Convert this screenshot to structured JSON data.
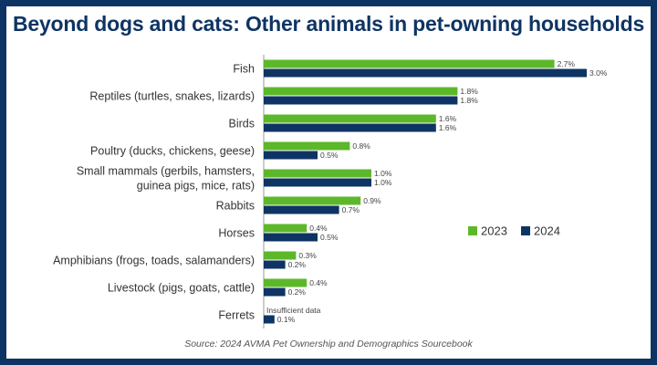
{
  "colors": {
    "frame": "#0e3463",
    "series_2023": "#5cb82a",
    "series_2024": "#0e3463"
  },
  "chart_data": {
    "type": "bar",
    "orientation": "horizontal",
    "title": "Beyond dogs and cats: Other animals in pet-owning households",
    "source": "Source: 2024 AVMA Pet Ownership and Demographics Sourcebook",
    "categories": [
      [
        "Fish"
      ],
      [
        "Reptiles (turtles, snakes, lizards)"
      ],
      [
        "Birds"
      ],
      [
        "Poultry (ducks, chickens, geese)"
      ],
      [
        "Small mammals (gerbils, hamsters,",
        "guinea pigs, mice, rats)"
      ],
      [
        "Rabbits"
      ],
      [
        "Horses"
      ],
      [
        "Amphibians (frogs, toads, salamanders)"
      ],
      [
        "Livestock (pigs, goats, cattle)"
      ],
      [
        "Ferrets"
      ]
    ],
    "series": [
      {
        "name": "2023",
        "color": "#5cb82a",
        "values": [
          2.7,
          1.8,
          1.6,
          0.8,
          1.0,
          0.9,
          0.4,
          0.3,
          0.4,
          null
        ],
        "labels": [
          "2.7%",
          "1.8%",
          "1.6%",
          "0.8%",
          "1.0%",
          "0.9%",
          "0.4%",
          "0.3%",
          "0.4%",
          "Insufficient data"
        ]
      },
      {
        "name": "2024",
        "color": "#0e3463",
        "values": [
          3.0,
          1.8,
          1.6,
          0.5,
          1.0,
          0.7,
          0.5,
          0.2,
          0.2,
          0.1
        ],
        "labels": [
          "3.0%",
          "1.8%",
          "1.6%",
          "0.5%",
          "1.0%",
          "0.7%",
          "0.5%",
          "0.2%",
          "0.2%",
          "0.1%"
        ]
      }
    ],
    "xlim": [
      0,
      3.0
    ],
    "unit": "%",
    "legend": "middle-right"
  }
}
